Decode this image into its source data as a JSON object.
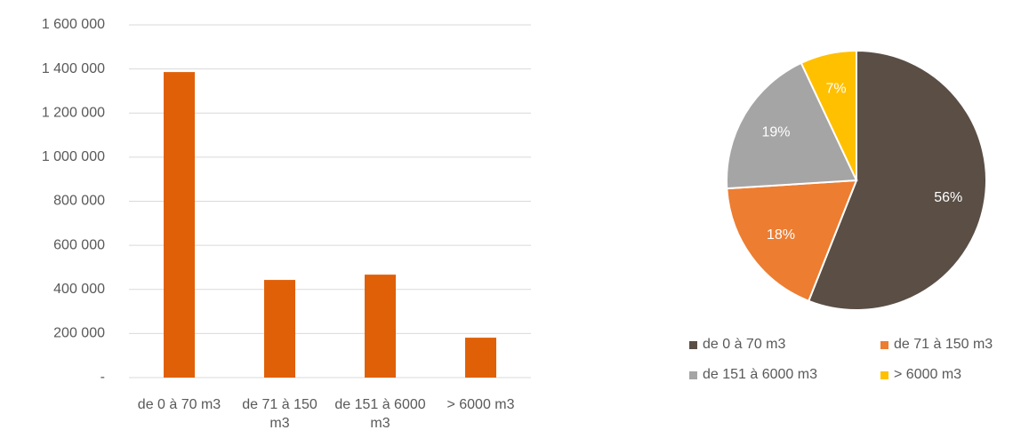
{
  "chart_data": [
    {
      "type": "bar",
      "categories": [
        "de 0 à 70 m3",
        "de 71 à 150 m3",
        "de 151 à 6000 m3",
        "> 6000 m3"
      ],
      "values": [
        1386000,
        443000,
        467000,
        181000
      ],
      "color": "#e06008",
      "ylim": [
        0,
        1600000
      ],
      "yticks": [
        {
          "value": 0,
          "label": "-"
        },
        {
          "value": 200000,
          "label": "200 000"
        },
        {
          "value": 400000,
          "label": "400 000"
        },
        {
          "value": 600000,
          "label": "600 000"
        },
        {
          "value": 800000,
          "label": "800 000"
        },
        {
          "value": 1000000,
          "label": "1 000 000"
        },
        {
          "value": 1200000,
          "label": "1 200 000"
        },
        {
          "value": 1400000,
          "label": "1 400 000"
        },
        {
          "value": 1600000,
          "label": "1 600 000"
        }
      ],
      "grid": true
    },
    {
      "type": "pie",
      "categories": [
        "de 0 à 70 m3",
        "de 71 à 150 m3",
        "de 151 à 6000 m3",
        "> 6000 m3"
      ],
      "values": [
        56,
        18,
        19,
        7
      ],
      "value_labels": [
        "56%",
        "18%",
        "19%",
        "7%"
      ],
      "colors": [
        "#5a4e45",
        "#ed7d31",
        "#a5a5a5",
        "#ffc000"
      ],
      "legend": "bottom"
    }
  ]
}
